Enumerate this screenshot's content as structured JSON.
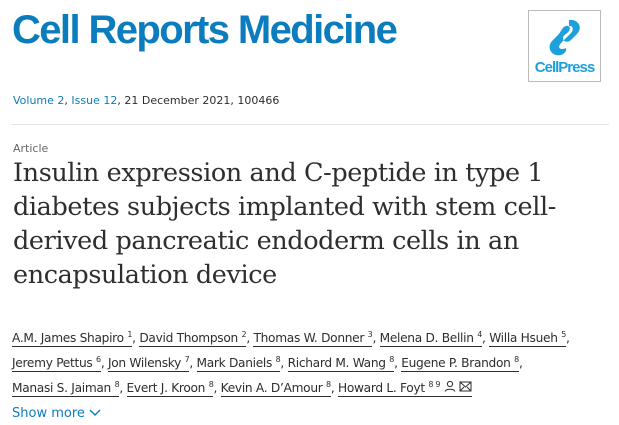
{
  "journal": "Cell Reports Medicine",
  "publisher_logo": "CellPress",
  "colors": {
    "brand": "#0b7cbd",
    "link": "#0c7dbb",
    "text": "#2e2e2e"
  },
  "meta": {
    "volume": "Volume 2",
    "issue": "Issue 12",
    "rest": ", 21 December 2021, 100466"
  },
  "article_type": "Article",
  "title": "Insulin expression and C-peptide in type 1 diabetes subjects implanted with stem cell-derived pancreatic endoderm cells in an encapsulation device",
  "authors": [
    {
      "name": "A.M. James Shapiro",
      "aff": "1"
    },
    {
      "name": "David Thompson",
      "aff": "2"
    },
    {
      "name": "Thomas W. Donner",
      "aff": "3"
    },
    {
      "name": "Melena D. Bellin",
      "aff": "4"
    },
    {
      "name": "Willa Hsueh",
      "aff": "5"
    },
    {
      "name": "Jeremy Pettus",
      "aff": "6"
    },
    {
      "name": "Jon Wilensky",
      "aff": "7"
    },
    {
      "name": "Mark Daniels",
      "aff": "8"
    },
    {
      "name": "Richard M. Wang",
      "aff": "8"
    },
    {
      "name": "Eugene P. Brandon",
      "aff": "8"
    },
    {
      "name": "Manasi S. Jaiman",
      "aff": "8"
    },
    {
      "name": "Evert J. Kroon",
      "aff": "8"
    },
    {
      "name": "Kevin A. D’Amour",
      "aff": "8"
    },
    {
      "name": "Howard L. Foyt",
      "aff": "8 9"
    }
  ],
  "show_more": "Show more",
  "icons": {
    "person": "person-icon",
    "mail": "mail-icon",
    "chevron": "chevron-down-icon"
  }
}
